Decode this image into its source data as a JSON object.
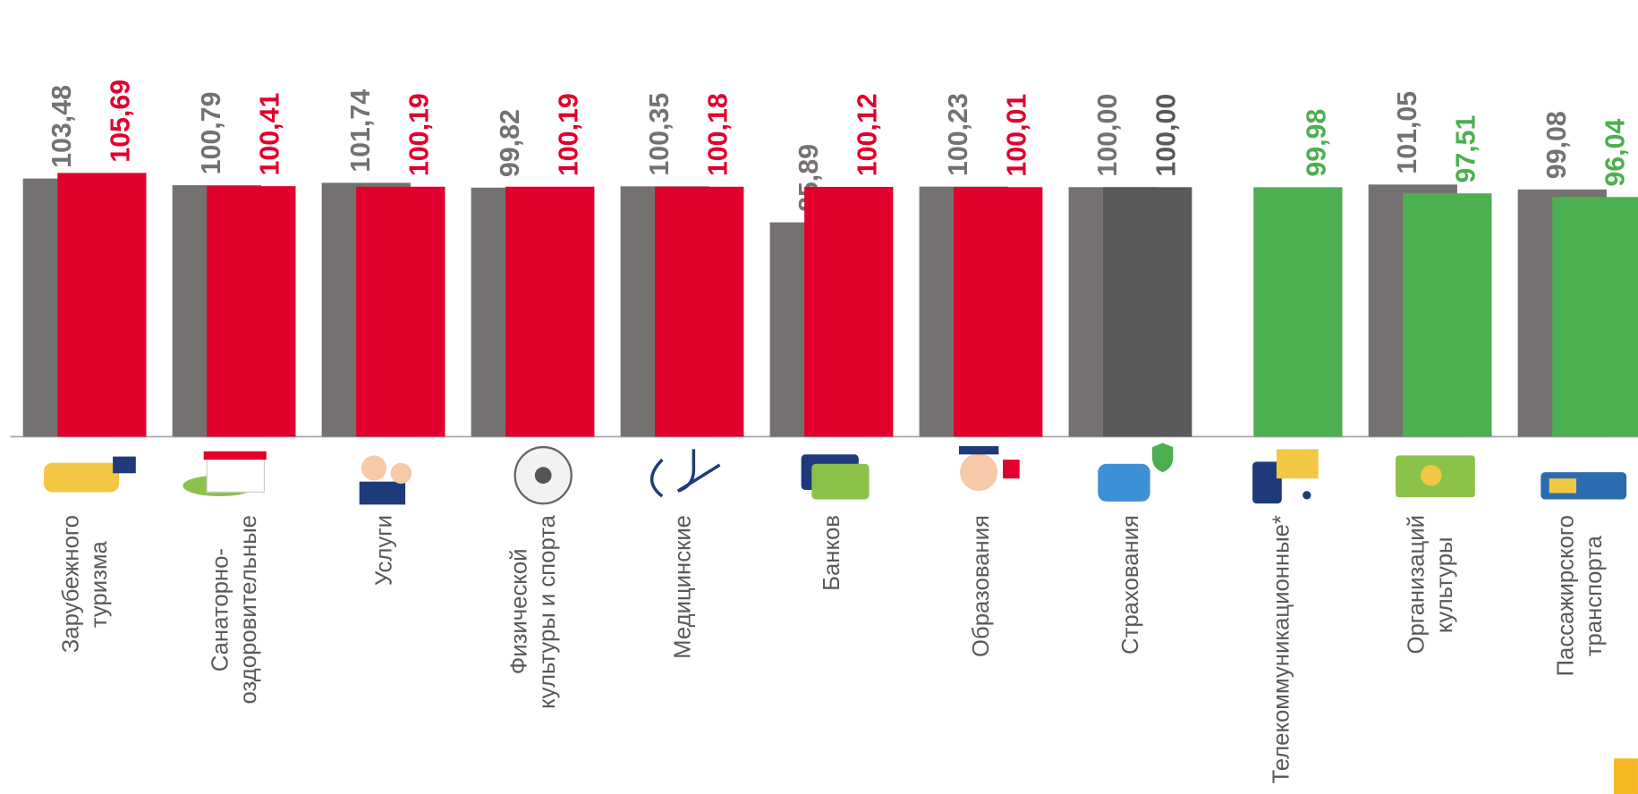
{
  "chart_data": {
    "type": "bar",
    "categories": [
      "Зарубежного\nтуризма",
      "Санаторно-\nоздоровительные",
      "Услуги",
      "Физической\nкультуры и спорта",
      "Медицинские",
      "Банков",
      "Образования",
      "Страхования",
      "Телекоммуникационные*",
      "Организаций\nкультуры",
      "Пассажирского\nтранспорта"
    ],
    "series": [
      {
        "color": "#767171",
        "values": [
          103.48,
          100.79,
          101.74,
          99.82,
          100.35,
          85.89,
          100.23,
          100.0,
          null,
          101.05,
          99.08
        ],
        "value_labels": [
          "103,48",
          "100,79",
          "101,74",
          "99,82",
          "100,35",
          "85,89",
          "100,23",
          "100,00",
          null,
          "101,05",
          "99,08"
        ]
      },
      {
        "colors": [
          "#e0002b",
          "#e0002b",
          "#e0002b",
          "#e0002b",
          "#e0002b",
          "#e0002b",
          "#e0002b",
          "#595959",
          "#4caf50",
          "#4caf50",
          "#4caf50"
        ],
        "values": [
          105.69,
          100.41,
          100.19,
          100.19,
          100.18,
          100.12,
          100.01,
          100.0,
          99.98,
          97.51,
          96.04
        ],
        "value_labels": [
          "105,69",
          "100,41",
          "100,19",
          "100,19",
          "100,18",
          "100,12",
          "100,01",
          "100,00",
          "99,98",
          "97,51",
          "96,04"
        ]
      }
    ],
    "ylim": [
      0,
      175
    ]
  }
}
